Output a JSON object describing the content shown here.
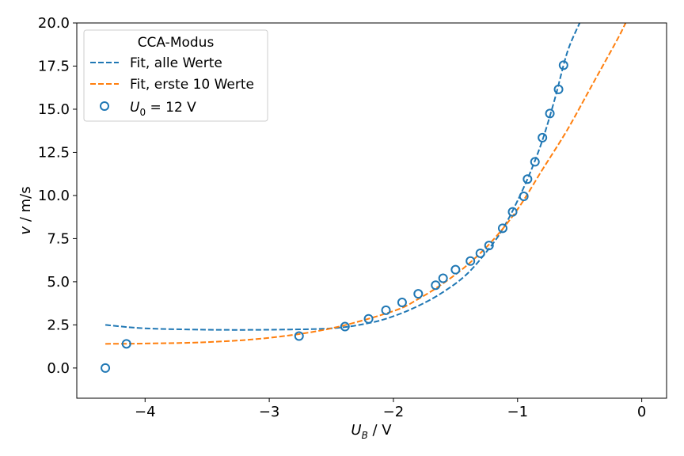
{
  "chart_data": {
    "type": "scatter",
    "xlabel": "U_B / V",
    "ylabel": "v / m/s",
    "xlim": [
      -4.55,
      0.2
    ],
    "ylim": [
      -1.75,
      20.0
    ],
    "xticks": [
      -4,
      -3,
      -2,
      -1,
      0
    ],
    "xtick_labels": [
      "−4",
      "−3",
      "−2",
      "−1",
      "0"
    ],
    "yticks": [
      0.0,
      2.5,
      5.0,
      7.5,
      10.0,
      12.5,
      15.0,
      17.5,
      20.0
    ],
    "ytick_labels": [
      "0.0",
      "2.5",
      "5.0",
      "7.5",
      "10.0",
      "12.5",
      "15.0",
      "17.5",
      "20.0"
    ],
    "grid": false,
    "legend": {
      "placement": "top-left",
      "title": "CCA-Modus",
      "entries": [
        "Fit, alle Werte",
        "Fit, erste 10 Werte",
        "U_0 = 12 V"
      ]
    },
    "series": [
      {
        "name": "Fit, alle Werte",
        "kind": "line",
        "style": "dashed",
        "color": "#1f77b4",
        "x": [
          -4.32,
          -4.0,
          -3.5,
          -3.0,
          -2.5,
          -2.2,
          -2.0,
          -1.8,
          -1.6,
          -1.4,
          -1.2,
          -1.1,
          -1.0,
          -0.9,
          -0.8,
          -0.7,
          -0.6,
          -0.5
        ],
        "y": [
          2.5,
          2.3,
          2.22,
          2.22,
          2.3,
          2.6,
          3.0,
          3.6,
          4.4,
          5.5,
          7.2,
          8.3,
          9.7,
          11.3,
          13.2,
          15.6,
          18.3,
          20.0
        ]
      },
      {
        "name": "Fit, erste 10 Werte",
        "kind": "line",
        "style": "dashed",
        "color": "#ff7f0e",
        "x": [
          -4.32,
          -4.0,
          -3.5,
          -3.0,
          -2.5,
          -2.0,
          -1.8,
          -1.6,
          -1.4,
          -1.2,
          -1.0,
          -0.8,
          -0.6,
          -0.4,
          -0.2,
          -0.13
        ],
        "y": [
          1.4,
          1.42,
          1.5,
          1.75,
          2.3,
          3.3,
          4.0,
          4.9,
          6.0,
          7.4,
          9.2,
          11.5,
          13.8,
          16.4,
          19.0,
          20.0
        ]
      },
      {
        "name": "U_0 = 12 V",
        "kind": "scatter",
        "color": "#1f77b4",
        "x": [
          -4.32,
          -4.15,
          -2.76,
          -2.39,
          -2.2,
          -2.06,
          -1.93,
          -1.8,
          -1.66,
          -1.6,
          -1.5,
          -1.38,
          -1.3,
          -1.23,
          -1.12,
          -1.04,
          -0.95,
          -0.92,
          -0.86,
          -0.8,
          -0.74,
          -0.67,
          -0.63
        ],
        "y": [
          0.0,
          1.4,
          1.85,
          2.4,
          2.85,
          3.35,
          3.8,
          4.3,
          4.8,
          5.2,
          5.7,
          6.2,
          6.65,
          7.1,
          8.1,
          9.05,
          9.95,
          10.95,
          11.95,
          13.35,
          14.75,
          16.15,
          17.55
        ]
      }
    ]
  }
}
